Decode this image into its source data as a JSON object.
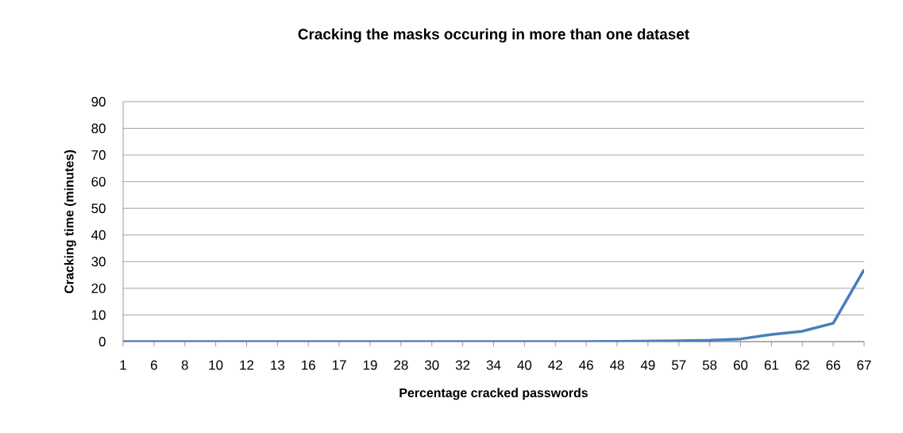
{
  "chart_data": {
    "type": "line",
    "title": "Cracking the masks occuring in more than one dataset",
    "xlabel": "Percentage cracked passwords",
    "ylabel": "Cracking time (minutes)",
    "categories": [
      "1",
      "6",
      "8",
      "10",
      "12",
      "13",
      "16",
      "17",
      "19",
      "28",
      "30",
      "32",
      "34",
      "40",
      "42",
      "46",
      "48",
      "49",
      "57",
      "58",
      "60",
      "61",
      "62",
      "66",
      "67"
    ],
    "series": [
      {
        "color": "#4a7ebb",
        "values": [
          0,
          0,
          0,
          0,
          0,
          0,
          0,
          0,
          0,
          0,
          0,
          0,
          0,
          0,
          0,
          0,
          0.1,
          0.2,
          0.3,
          0.5,
          1,
          2.7,
          3.9,
          6.9,
          27
        ]
      }
    ],
    "ylim": [
      0,
      90
    ],
    "yticks": [
      0,
      10,
      20,
      30,
      40,
      50,
      60,
      70,
      80,
      90
    ],
    "grid": "y",
    "marker": "none",
    "line_style": "solid"
  }
}
